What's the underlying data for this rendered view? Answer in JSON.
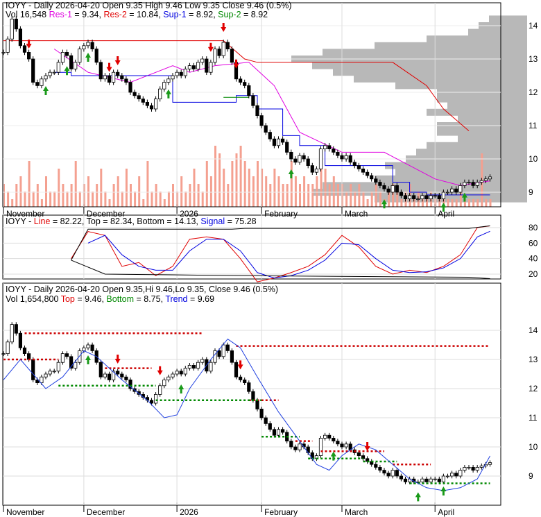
{
  "header_top": {
    "line1": "IOYY - Daily 2026-04-20 Open 9.35  High 9.46  Low 9.35  Close 9.46 (0.5%)",
    "vol": "Vol 16,548",
    "res1_label": "Res-1",
    "res1": " = 9.34, ",
    "res2_label": "Res-2",
    "res2": " = 10.84, ",
    "sup1_label": "Sup-1",
    "sup1": " = 8.92, ",
    "sup2_label": "Sup-2",
    "sup2": " = 8.92"
  },
  "header_mid": {
    "prefix": "IOYY - ",
    "line_label": "Line",
    "rest": " = 82.22, Top = 82.34, Bottom = 14.13, ",
    "signal_label": "Signal",
    "signal": " = 75.28"
  },
  "header_bot": {
    "line1": "IOYY - Daily 2026-04-20 Open 9.35,Hi 9.46,Lo 9.35, Close 9.46 (0.5%)",
    "vol": "Vol 1,654,800 ",
    "top_label": "Top",
    "top": " = 9.46, ",
    "bottom_label": "Bottom",
    "bottom": " = 8.75, ",
    "trend_label": "Trend",
    "trend": " = 9.69"
  },
  "colors": {
    "up": "#ffffff",
    "down": "#000000",
    "res1": "#e000e0",
    "res2": "#e00000",
    "sup1": "#0000e0",
    "sup2": "#008800",
    "volume": "#f4a090",
    "profile": "#b8b8b8"
  },
  "chart_data": [
    {
      "type": "candlestick",
      "panel": "price",
      "yticks": [
        9,
        10,
        11,
        12,
        13,
        14
      ],
      "ylim": [
        8.6,
        14.5
      ],
      "months": [
        {
          "label": "November",
          "day": 0
        },
        {
          "label": "December",
          "day": 19
        },
        {
          "label": "2026",
          "day": 41
        },
        {
          "label": "February",
          "day": 61
        },
        {
          "label": "March",
          "day": 80
        },
        {
          "label": "April",
          "day": 102
        }
      ],
      "close": [
        13.2,
        13.6,
        14.2,
        13.9,
        13.4,
        13.2,
        13.0,
        12.3,
        12.2,
        12.4,
        12.5,
        12.6,
        12.6,
        12.9,
        13.2,
        13.1,
        12.7,
        12.9,
        13.3,
        13.4,
        13.5,
        13.3,
        12.9,
        12.4,
        12.5,
        12.3,
        12.6,
        12.5,
        12.4,
        12.3,
        12.0,
        11.9,
        11.8,
        11.7,
        11.6,
        11.5,
        11.8,
        12.1,
        12.3,
        12.4,
        12.5,
        12.6,
        12.5,
        12.7,
        12.8,
        12.7,
        12.9,
        13.0,
        12.6,
        12.9,
        13.3,
        13.1,
        13.5,
        13.3,
        12.9,
        12.4,
        12.3,
        12.2,
        11.9,
        11.6,
        11.3,
        11.0,
        10.8,
        10.6,
        10.4,
        10.6,
        10.5,
        10.2,
        10.0,
        9.9,
        10.1,
        10.0,
        9.8,
        9.6,
        9.7,
        10.3,
        10.4,
        10.3,
        10.2,
        10.1,
        10.0,
        10.1,
        9.9,
        9.8,
        9.7,
        9.6,
        9.5,
        9.4,
        9.3,
        9.2,
        9.1,
        9.0,
        9.2,
        9.0,
        8.9,
        8.8,
        8.9,
        8.8,
        8.8,
        8.9,
        8.8,
        8.9,
        8.9,
        8.8,
        9.0,
        9.0,
        9.1,
        9.0,
        9.2,
        9.3,
        9.3,
        9.2,
        9.3,
        9.35,
        9.4,
        9.46
      ],
      "volume_relative": [
        0.3,
        0.2,
        0.1,
        0.3,
        0.4,
        0.2,
        0.6,
        0.2,
        0.3,
        0.1,
        0.4,
        0.2,
        0.2,
        0.5,
        0.3,
        0.2,
        0.3,
        0.6,
        0.2,
        0.3,
        0.4,
        0.2,
        0.3,
        0.5,
        0.2,
        0.1,
        0.3,
        0.4,
        0.2,
        0.5,
        0.3,
        0.2,
        0.4,
        0.1,
        0.6,
        0.2,
        0.3,
        0.2,
        0.1,
        0.2,
        0.3,
        0.2,
        0.4,
        0.2,
        0.3,
        0.5,
        0.3,
        0.2,
        0.6,
        0.4,
        0.8,
        0.7,
        0.5,
        0.3,
        0.6,
        0.7,
        0.8,
        0.6,
        0.5,
        0.4,
        0.6,
        0.5,
        0.4,
        0.3,
        0.5,
        0.4,
        0.3,
        0.3,
        0.6,
        0.4,
        0.3,
        0.4,
        0.3,
        0.3,
        0.4,
        0.6,
        0.5,
        0.3,
        0.4,
        0.3,
        0.3,
        0.2,
        0.3,
        0.2,
        0.3,
        0.2,
        0.1,
        0.2,
        0.3,
        0.2,
        0.1,
        0.2,
        0.3,
        0.2,
        0.1,
        0.2,
        0.3,
        0.1,
        0.2,
        0.1,
        0.1,
        0.2,
        0.1,
        0.1,
        0.2,
        0.1,
        0.1,
        0.1,
        0.2,
        0.1,
        0.1,
        0.1,
        0.1,
        0.7,
        0.1,
        0.1
      ],
      "res2": [
        [
          0,
          13.55
        ],
        [
          52,
          13.55
        ],
        [
          57,
          13.0
        ],
        [
          60,
          12.9
        ],
        [
          92,
          12.9
        ],
        [
          100,
          12.2
        ],
        [
          104,
          11.5
        ],
        [
          110,
          10.84
        ]
      ],
      "res1": [
        [
          12,
          13.3
        ],
        [
          20,
          12.6
        ],
        [
          30,
          12.3
        ],
        [
          40,
          12.8
        ],
        [
          44,
          12.6
        ],
        [
          50,
          12.8
        ],
        [
          58,
          12.9
        ],
        [
          64,
          12.2
        ],
        [
          70,
          10.8
        ],
        [
          80,
          10.2
        ],
        [
          90,
          10.2
        ],
        [
          96,
          9.8
        ],
        [
          102,
          9.4
        ],
        [
          108,
          9.2
        ],
        [
          115,
          9.34
        ]
      ],
      "sup1": [
        [
          12,
          12.6
        ],
        [
          16,
          12.5
        ],
        [
          38,
          12.5
        ],
        [
          40,
          11.7
        ],
        [
          52,
          11.7
        ],
        [
          55,
          11.9
        ],
        [
          60,
          11.5
        ],
        [
          66,
          10.7
        ],
        [
          70,
          10.4
        ],
        [
          76,
          9.8
        ],
        [
          86,
          9.8
        ],
        [
          92,
          9.3
        ],
        [
          96,
          9.0
        ],
        [
          100,
          8.92
        ],
        [
          110,
          8.92
        ],
        [
          115,
          8.92
        ]
      ],
      "sup2": [
        [
          52,
          11.85
        ],
        [
          58,
          11.85
        ]
      ],
      "buy_signals": [
        10,
        15,
        20,
        39,
        68,
        90,
        104,
        109
      ],
      "sell_signals": [
        6,
        25,
        27,
        49,
        52,
        55
      ],
      "volume_profile": {
        "prices": [
          8.8,
          9.0,
          9.2,
          9.4,
          9.6,
          9.8,
          10.0,
          10.2,
          10.4,
          10.6,
          10.8,
          11.0,
          11.2,
          11.4,
          11.6,
          11.8,
          12.0,
          12.2,
          12.4,
          12.6,
          12.8,
          13.0,
          13.2,
          13.4,
          13.6,
          13.8,
          14.0,
          14.2
        ],
        "relative": [
          0.6,
          0.9,
          0.85,
          0.6,
          0.5,
          0.55,
          0.45,
          0.4,
          0.35,
          0.2,
          0.3,
          0.3,
          0.2,
          0.35,
          0.25,
          0.3,
          0.3,
          0.5,
          0.7,
          0.8,
          0.9,
          1.0,
          0.85,
          0.6,
          0.35,
          0.15,
          0.1,
          0.05
        ]
      }
    },
    {
      "type": "line",
      "panel": "oscillator",
      "yticks": [
        20,
        40,
        60,
        80
      ],
      "ylim": [
        10,
        90
      ],
      "series": [
        {
          "name": "Line",
          "color": "#e00000",
          "points": [
            [
              16,
              40
            ],
            [
              20,
              75
            ],
            [
              24,
              70
            ],
            [
              28,
              30
            ],
            [
              32,
              35
            ],
            [
              36,
              18
            ],
            [
              40,
              30
            ],
            [
              44,
              65
            ],
            [
              48,
              68
            ],
            [
              52,
              65
            ],
            [
              56,
              40
            ],
            [
              60,
              10
            ],
            [
              64,
              15
            ],
            [
              68,
              22
            ],
            [
              72,
              30
            ],
            [
              76,
              45
            ],
            [
              80,
              70
            ],
            [
              84,
              55
            ],
            [
              88,
              30
            ],
            [
              92,
              20
            ],
            [
              96,
              25
            ],
            [
              100,
              22
            ],
            [
              104,
              30
            ],
            [
              108,
              45
            ],
            [
              112,
              80
            ],
            [
              115,
              82.22
            ]
          ]
        },
        {
          "name": "Signal",
          "color": "#0000e0",
          "points": [
            [
              20,
              60
            ],
            [
              24,
              70
            ],
            [
              28,
              45
            ],
            [
              32,
              30
            ],
            [
              36,
              25
            ],
            [
              40,
              25
            ],
            [
              44,
              50
            ],
            [
              48,
              65
            ],
            [
              52,
              65
            ],
            [
              56,
              50
            ],
            [
              60,
              22
            ],
            [
              64,
              15
            ],
            [
              68,
              18
            ],
            [
              72,
              25
            ],
            [
              76,
              38
            ],
            [
              80,
              60
            ],
            [
              84,
              58
            ],
            [
              88,
              40
            ],
            [
              92,
              25
            ],
            [
              96,
              22
            ],
            [
              100,
              23
            ],
            [
              104,
              28
            ],
            [
              108,
              40
            ],
            [
              112,
              68
            ],
            [
              115,
              75.28
            ]
          ]
        },
        {
          "name": "Top",
          "color": "#000000",
          "points": [
            [
              16,
              38
            ],
            [
              20,
              78
            ],
            [
              54,
              78
            ],
            [
              57,
              79
            ],
            [
              110,
              79
            ],
            [
              115,
              82.34
            ]
          ]
        },
        {
          "name": "Bottom",
          "color": "#000000",
          "points": [
            [
              16,
              38
            ],
            [
              24,
              20
            ],
            [
              56,
              18
            ],
            [
              110,
              16
            ],
            [
              115,
              14.13
            ]
          ]
        }
      ]
    },
    {
      "type": "candlestick",
      "panel": "trend",
      "yticks": [
        9,
        10,
        11,
        12,
        13,
        14
      ],
      "ylim": [
        8.3,
        14.8
      ],
      "trend": [
        [
          0,
          12.3
        ],
        [
          4,
          13.0
        ],
        [
          10,
          12.0
        ],
        [
          14,
          12.4
        ],
        [
          19,
          13.3
        ],
        [
          22,
          13.1
        ],
        [
          28,
          12.3
        ],
        [
          34,
          11.6
        ],
        [
          38,
          11.0
        ],
        [
          41,
          11.1
        ],
        [
          44,
          12.0
        ],
        [
          49,
          13.0
        ],
        [
          53,
          13.7
        ],
        [
          56,
          13.4
        ],
        [
          60,
          12.4
        ],
        [
          65,
          11.2
        ],
        [
          70,
          10.2
        ],
        [
          74,
          9.4
        ],
        [
          77,
          9.2
        ],
        [
          80,
          9.7
        ],
        [
          84,
          10.1
        ],
        [
          88,
          9.9
        ],
        [
          92,
          9.4
        ],
        [
          96,
          8.9
        ],
        [
          100,
          8.6
        ],
        [
          104,
          8.5
        ],
        [
          108,
          8.6
        ],
        [
          112,
          8.9
        ],
        [
          115,
          9.69
        ]
      ],
      "top_lines": [
        [
          5,
          47,
          13.9
        ],
        [
          55,
          115,
          13.46
        ],
        [
          0,
          13,
          13.0
        ],
        [
          58,
          65,
          11.6
        ],
        [
          69,
          73,
          10.2
        ],
        [
          75,
          90,
          9.85
        ],
        [
          24,
          35,
          12.7
        ],
        [
          92,
          101,
          9.4
        ]
      ],
      "bottom_lines": [
        [
          13,
          26,
          12.1
        ],
        [
          26,
          36,
          12.1
        ],
        [
          36,
          41,
          11.6
        ],
        [
          41,
          61,
          11.6
        ],
        [
          61,
          70,
          10.35
        ],
        [
          72,
          85,
          9.6
        ],
        [
          85,
          93,
          9.5
        ],
        [
          96,
          115,
          8.75
        ]
      ],
      "buy_signals": [
        20,
        42,
        78,
        98,
        104
      ],
      "sell_signals": [
        27,
        37,
        56,
        86
      ]
    }
  ]
}
